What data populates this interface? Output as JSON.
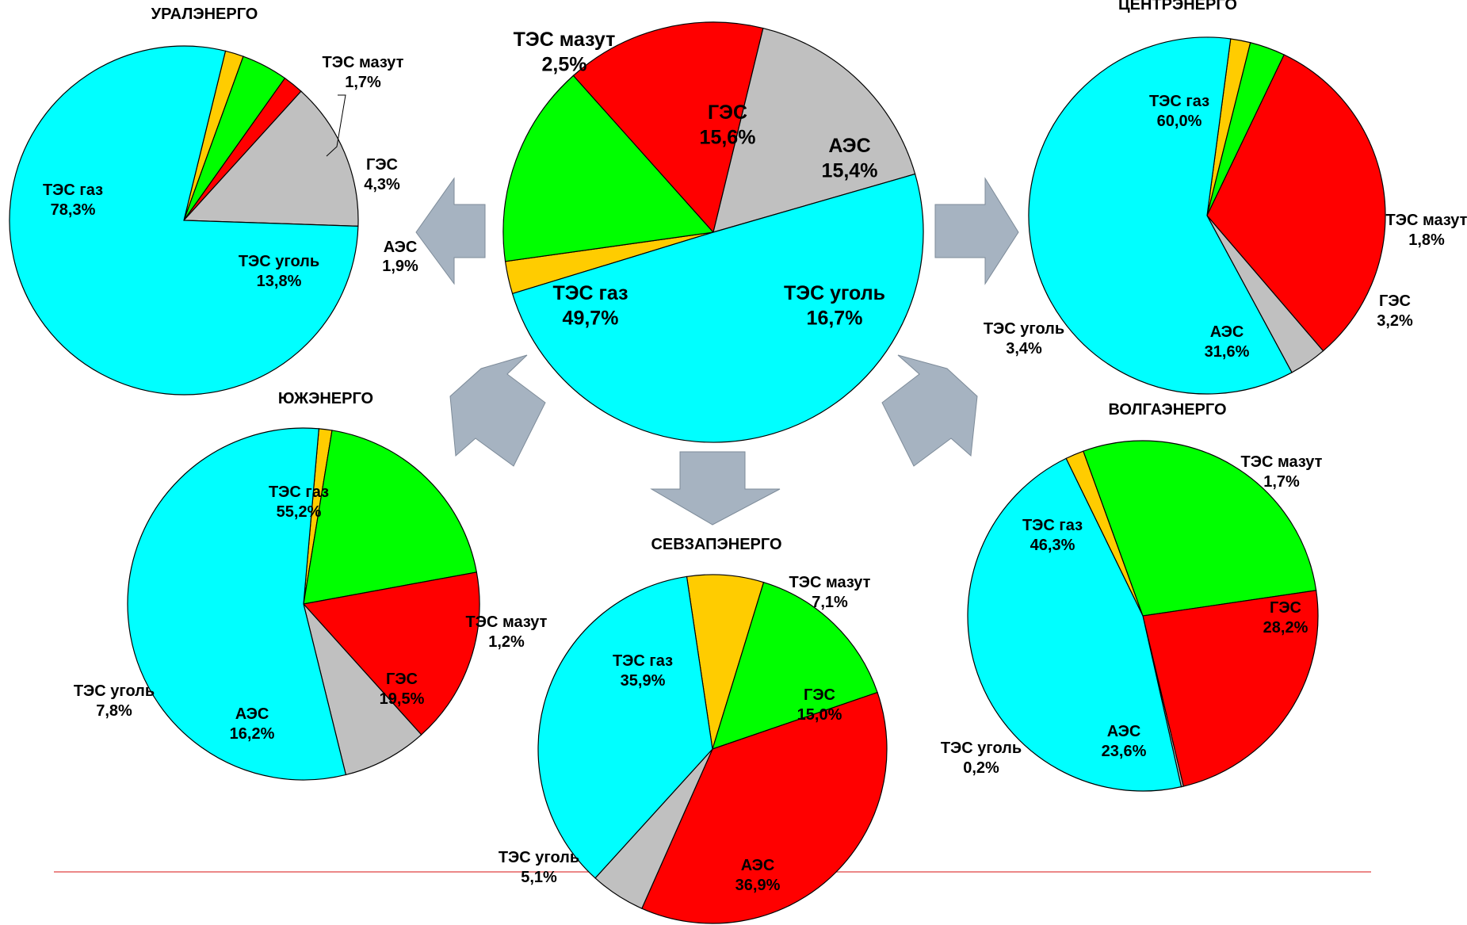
{
  "colors": {
    "gas": "#00FFFF",
    "coal": "#C0C0C0",
    "aes": "#FF0000",
    "ges": "#00FF00",
    "mazut": "#FFCC00",
    "arrow": "#A6B3C1",
    "baseline": "#E04040"
  },
  "chart_data": [
    {
      "type": "pie",
      "title": "",
      "slices": [
        {
          "key": "mazut",
          "label": "ТЭС мазут",
          "value": 2.5,
          "text": "2,5%"
        },
        {
          "key": "ges",
          "label": "ГЭС",
          "value": 15.6,
          "text": "15,6%"
        },
        {
          "key": "aes",
          "label": "АЭС",
          "value": 15.4,
          "text": "15,4%"
        },
        {
          "key": "coal",
          "label": "ТЭС уголь",
          "value": 16.7,
          "text": "16,7%"
        },
        {
          "key": "gas",
          "label": "ТЭС газ",
          "value": 49.7,
          "text": "49,7%"
        }
      ]
    },
    {
      "type": "pie",
      "title": "УРАЛЭНЕРГО",
      "slices": [
        {
          "key": "mazut",
          "label": "ТЭС мазут",
          "value": 1.7,
          "text": "1,7%"
        },
        {
          "key": "ges",
          "label": "ГЭС",
          "value": 4.3,
          "text": "4,3%"
        },
        {
          "key": "aes",
          "label": "АЭС",
          "value": 1.9,
          "text": "1,9%"
        },
        {
          "key": "coal",
          "label": "ТЭС уголь",
          "value": 13.8,
          "text": "13,8%"
        },
        {
          "key": "gas",
          "label": "ТЭС газ",
          "value": 78.3,
          "text": "78,3%"
        }
      ]
    },
    {
      "type": "pie",
      "title": "ЦЕНТРЭНЕРГО",
      "slices": [
        {
          "key": "mazut",
          "label": "ТЭС мазут",
          "value": 1.8,
          "text": "1,8%"
        },
        {
          "key": "ges",
          "label": "ГЭС",
          "value": 3.2,
          "text": "3,2%"
        },
        {
          "key": "aes",
          "label": "АЭС",
          "value": 31.6,
          "text": "31,6%"
        },
        {
          "key": "coal",
          "label": "ТЭС уголь",
          "value": 3.4,
          "text": "3,4%"
        },
        {
          "key": "gas",
          "label": "ТЭС газ",
          "value": 60.0,
          "text": "60,0%"
        }
      ]
    },
    {
      "type": "pie",
      "title": "ЮЖЭНЕРГО",
      "slices": [
        {
          "key": "mazut",
          "label": "ТЭС мазут",
          "value": 1.2,
          "text": "1,2%"
        },
        {
          "key": "ges",
          "label": "ГЭС",
          "value": 19.5,
          "text": "19,5%"
        },
        {
          "key": "aes",
          "label": "АЭС",
          "value": 16.2,
          "text": "16,2%"
        },
        {
          "key": "coal",
          "label": "ТЭС уголь",
          "value": 7.8,
          "text": "7,8%"
        },
        {
          "key": "gas",
          "label": "ТЭС газ",
          "value": 55.2,
          "text": "55,2%"
        }
      ]
    },
    {
      "type": "pie",
      "title": "СЕВЗАПЭНЕРГО",
      "slices": [
        {
          "key": "mazut",
          "label": "ТЭС мазут",
          "value": 7.1,
          "text": "7,1%"
        },
        {
          "key": "ges",
          "label": "ГЭС",
          "value": 15.0,
          "text": "15,0%"
        },
        {
          "key": "aes",
          "label": "АЭС",
          "value": 36.9,
          "text": "36,9%"
        },
        {
          "key": "coal",
          "label": "ТЭС уголь",
          "value": 5.1,
          "text": "5,1%"
        },
        {
          "key": "gas",
          "label": "ТЭС газ",
          "value": 35.9,
          "text": "35,9%"
        }
      ]
    },
    {
      "type": "pie",
      "title": "ВОЛГАЭНЕРГО",
      "slices": [
        {
          "key": "mazut",
          "label": "ТЭС мазут",
          "value": 1.7,
          "text": "1,7%"
        },
        {
          "key": "ges",
          "label": "ГЭС",
          "value": 28.2,
          "text": "28,2%"
        },
        {
          "key": "aes",
          "label": "АЭС",
          "value": 23.6,
          "text": "23,6%"
        },
        {
          "key": "coal",
          "label": "ТЭС уголь",
          "value": 0.2,
          "text": "0,2%"
        },
        {
          "key": "gas",
          "label": "ТЭС газ",
          "value": 46.3,
          "text": "46,3%"
        }
      ]
    }
  ]
}
